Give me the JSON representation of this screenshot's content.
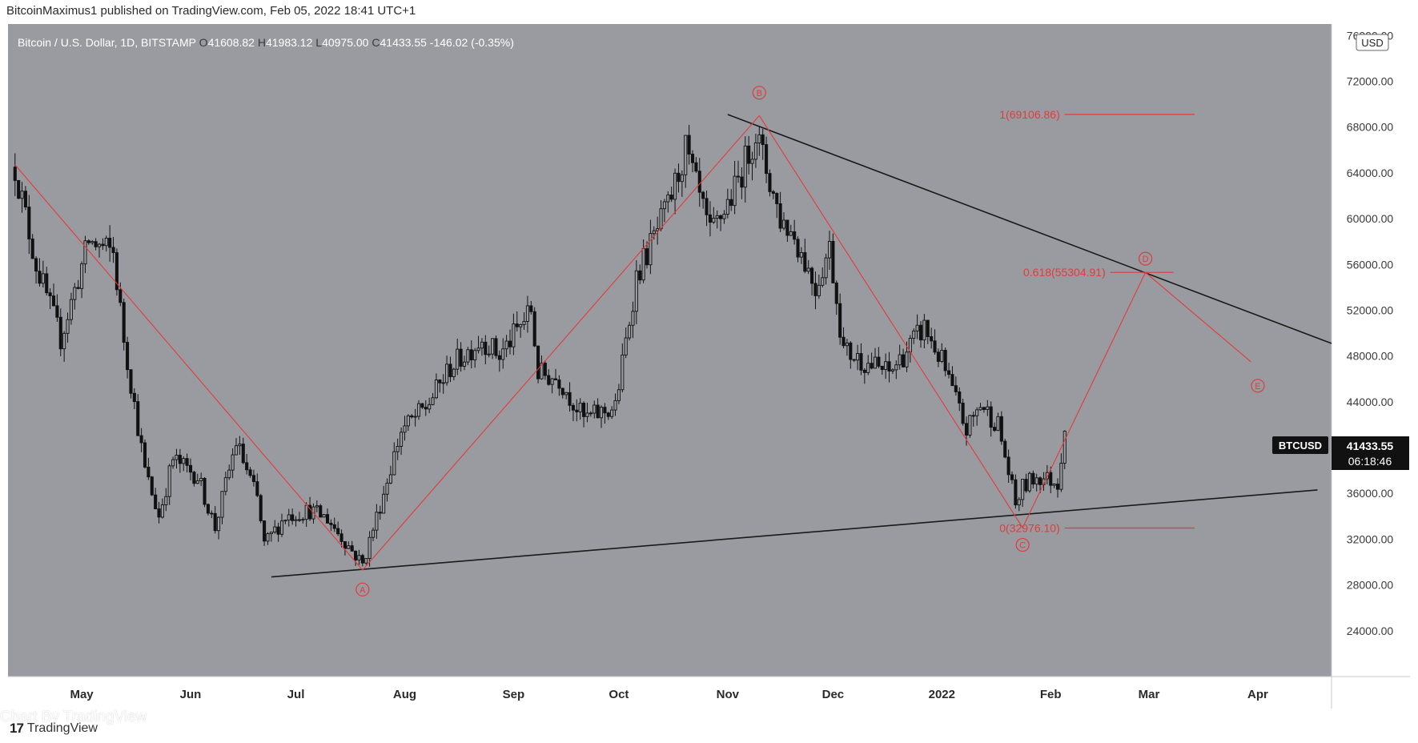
{
  "header": {
    "caption": "BitcoinMaximus1 published on TradingView.com, Feb 05, 2022 18:41 UTC+1"
  },
  "colors": {
    "plot_bg": "#9a9ba0",
    "axis_bg": "#ffffff",
    "candle": "#111111",
    "accent": "#e23b3b",
    "trendline": "#1a1a1a"
  },
  "chart_data": {
    "type": "candlestick",
    "symbol_info": {
      "name": "Bitcoin / U.S. Dollar, 1D, BITSTAMP",
      "open_label": "O",
      "open": "41608.82",
      "high_label": "H",
      "high": "41983.12",
      "low_label": "L",
      "low": "40975.00",
      "close_label": "C",
      "close": "41433.55",
      "change": "-146.02 (-0.35%)"
    },
    "currency": "USD",
    "price_tag": {
      "symbol": "BTCUSD",
      "price": "41433.55",
      "countdown": "06:18:46"
    },
    "ylim": [
      20000,
      77000
    ],
    "yticks": [
      "76000.00",
      "72000.00",
      "68000.00",
      "64000.00",
      "60000.00",
      "56000.00",
      "52000.00",
      "48000.00",
      "44000.00",
      "40000.00",
      "36000.00",
      "32000.00",
      "28000.00",
      "24000.00"
    ],
    "xlim": [
      "2021-04-10",
      "2022-04-22"
    ],
    "xticks": [
      {
        "label": "May",
        "date": "2021-05-01"
      },
      {
        "label": "Jun",
        "date": "2021-06-01"
      },
      {
        "label": "Jul",
        "date": "2021-07-01"
      },
      {
        "label": "Aug",
        "date": "2021-08-01"
      },
      {
        "label": "Sep",
        "date": "2021-09-01"
      },
      {
        "label": "Oct",
        "date": "2021-10-01"
      },
      {
        "label": "Nov",
        "date": "2021-11-01"
      },
      {
        "label": "Dec",
        "date": "2021-12-01"
      },
      {
        "label": "2022",
        "date": "2022-01-01"
      },
      {
        "label": "Feb",
        "date": "2022-02-01"
      },
      {
        "label": "Mar",
        "date": "2022-03-01"
      },
      {
        "label": "Apr",
        "date": "2022-04-01"
      }
    ],
    "price_path": [
      [
        "2021-04-12",
        64500
      ],
      [
        "2021-04-18",
        56000
      ],
      [
        "2021-04-25",
        49500
      ],
      [
        "2021-05-03",
        58000
      ],
      [
        "2021-05-10",
        57000
      ],
      [
        "2021-05-13",
        49500
      ],
      [
        "2021-05-19",
        38000
      ],
      [
        "2021-05-23",
        34000
      ],
      [
        "2021-05-27",
        39000
      ],
      [
        "2021-06-03",
        37500
      ],
      [
        "2021-06-08",
        33000
      ],
      [
        "2021-06-14",
        40500
      ],
      [
        "2021-06-20",
        35500
      ],
      [
        "2021-06-22",
        31500
      ],
      [
        "2021-06-28",
        34000
      ],
      [
        "2021-07-05",
        34500
      ],
      [
        "2021-07-10",
        33800
      ],
      [
        "2021-07-15",
        31800
      ],
      [
        "2021-07-20",
        29800
      ],
      [
        "2021-07-25",
        35000
      ],
      [
        "2021-07-31",
        41500
      ],
      [
        "2021-08-07",
        43500
      ],
      [
        "2021-08-14",
        47000
      ],
      [
        "2021-08-23",
        49500
      ],
      [
        "2021-08-28",
        48000
      ],
      [
        "2021-09-06",
        52000
      ],
      [
        "2021-09-08",
        46500
      ],
      [
        "2021-09-14",
        46000
      ],
      [
        "2021-09-21",
        42500
      ],
      [
        "2021-09-30",
        43500
      ],
      [
        "2021-10-06",
        55000
      ],
      [
        "2021-10-15",
        61000
      ],
      [
        "2021-10-20",
        66000
      ],
      [
        "2021-10-27",
        58500
      ],
      [
        "2021-11-03",
        62500
      ],
      [
        "2021-11-09",
        67500
      ],
      [
        "2021-11-16",
        60000
      ],
      [
        "2021-11-20",
        58500
      ],
      [
        "2021-11-26",
        54000
      ],
      [
        "2021-11-30",
        57500
      ],
      [
        "2021-12-04",
        48500
      ],
      [
        "2021-12-10",
        47500
      ],
      [
        "2021-12-17",
        46500
      ],
      [
        "2021-12-27",
        50500
      ],
      [
        "2022-01-01",
        47500
      ],
      [
        "2022-01-08",
        41500
      ],
      [
        "2022-01-12",
        43800
      ],
      [
        "2022-01-17",
        42000
      ],
      [
        "2022-01-22",
        35000
      ],
      [
        "2022-01-24",
        36500
      ],
      [
        "2022-01-28",
        37500
      ],
      [
        "2022-02-03",
        37000
      ],
      [
        "2022-02-05",
        41433
      ]
    ],
    "wave_path": [
      {
        "date": "2021-04-12",
        "value": 64700
      },
      {
        "date": "2021-07-20",
        "value": 29300
      },
      {
        "date": "2021-11-10",
        "value": 69000
      },
      {
        "date": "2022-01-24",
        "value": 33000
      },
      {
        "date": "2022-02-28",
        "value": 55300
      },
      {
        "date": "2022-03-30",
        "value": 47500
      }
    ],
    "wave_labels": [
      {
        "text": "A",
        "date": "2021-07-20",
        "value": 27600
      },
      {
        "text": "B",
        "date": "2021-11-10",
        "value": 71000
      },
      {
        "text": "C",
        "date": "2022-01-24",
        "value": 31500
      },
      {
        "text": "D",
        "date": "2022-02-28",
        "value": 56500
      },
      {
        "text": "E",
        "date": "2022-04-01",
        "value": 45400
      }
    ],
    "trendlines": [
      {
        "name": "resistance",
        "start": {
          "date": "2021-11-01",
          "value": 69100
        },
        "end": {
          "date": "2022-04-22",
          "value": 49100
        }
      },
      {
        "name": "support",
        "start": {
          "date": "2021-06-24",
          "value": 28700
        },
        "end": {
          "date": "2022-04-18",
          "value": 36300
        }
      }
    ],
    "fib_levels": [
      {
        "label": "1(69106.86)",
        "value": 69106.86,
        "start": "2022-02-05",
        "end": "2022-03-14"
      },
      {
        "label": "0.618(55304.91)",
        "value": 55304.91,
        "start": "2022-02-18",
        "end": "2022-03-08"
      },
      {
        "label": "0(32976.10)",
        "value": 32976.1,
        "start": "2022-02-05",
        "end": "2022-03-14"
      }
    ]
  },
  "footer": {
    "watermark": "Chart By TradingView",
    "brand": "TradingView",
    "logo_icon": "tradingview-logo-icon"
  }
}
